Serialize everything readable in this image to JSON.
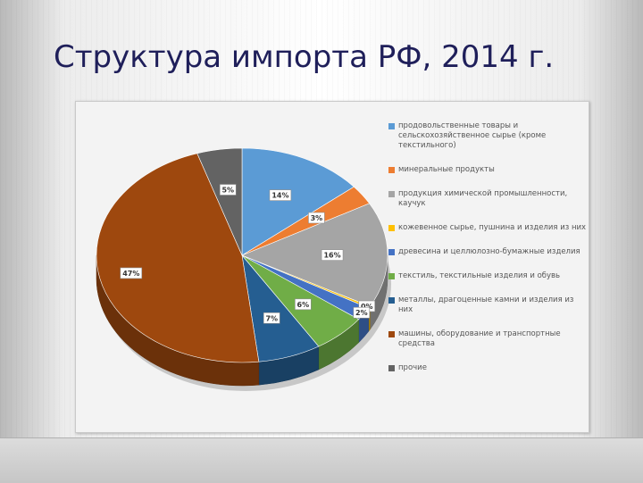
{
  "slide": {
    "title": "Структура импорта РФ, 2014 г."
  },
  "chart_data": {
    "type": "pie",
    "title": "",
    "slices": [
      {
        "label": "продовольственные товары и сельскохозяйственное сырье (кроме текстильного)",
        "value": 14,
        "value_label": "14%",
        "color": "#5b9bd5"
      },
      {
        "label": "минеральные продукты",
        "value": 3,
        "value_label": "3%",
        "color": "#ed7d31"
      },
      {
        "label": "продукция химической промышленности, каучук",
        "value": 16,
        "value_label": "16%",
        "color": "#a5a5a5"
      },
      {
        "label": "кожевенное сырье, пушнина и изделия из них",
        "value": 0.3,
        "value_label": "0%",
        "color": "#ffc000"
      },
      {
        "label": "древесина и целлюлозно-бумажные изделия",
        "value": 2,
        "value_label": "2%",
        "color": "#4472c4"
      },
      {
        "label": "текстиль, текстильные изделия и обувь",
        "value": 6,
        "value_label": "6%",
        "color": "#70ad47"
      },
      {
        "label": "металлы, драгоценные камни и изделия из них",
        "value": 7,
        "value_label": "7%",
        "color": "#255e91"
      },
      {
        "label": "машины, оборудование и транспортные средства",
        "value": 47,
        "value_label": "47%",
        "color": "#9e480e"
      },
      {
        "label": "прочие",
        "value": 5,
        "value_label": "5%",
        "color": "#636363"
      }
    ],
    "legend_position": "right"
  }
}
